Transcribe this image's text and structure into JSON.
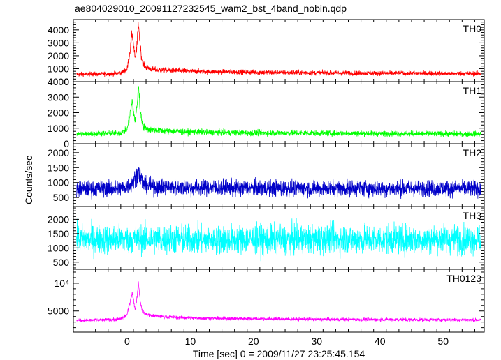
{
  "chart_data": {
    "type": "line",
    "title": "ae804029010_20091127232545_wam2_bst_4band_nobin.qdp",
    "xlabel": "Time [sec] 0 = 2009/11/27 23:25:45.154",
    "ylabel": "Counts/sec",
    "xlim": [
      -8.5,
      56.5
    ],
    "x_ticks": [
      0,
      10,
      20,
      30,
      40,
      50
    ],
    "x_tick_labels": [
      "0",
      "10",
      "20",
      "30",
      "40",
      "50"
    ],
    "grid": false,
    "legend": "none",
    "series": [
      {
        "name": "TH0",
        "color": "#ff0000",
        "ylim": [
          0,
          4800
        ],
        "y_ticks": [
          0,
          1000,
          2000,
          3000,
          4000
        ],
        "y_tick_labels": [
          "0",
          "1000",
          "2000",
          "3000",
          "4000"
        ],
        "x": [
          -8,
          -6,
          -4,
          -2,
          -1,
          0,
          0.5,
          0.8,
          1.0,
          1.3,
          1.6,
          1.8,
          2.0,
          2.3,
          2.6,
          3,
          4,
          5,
          6,
          8,
          10,
          15,
          20,
          25,
          30,
          35,
          40,
          45,
          50,
          55
        ],
        "values": [
          560,
          580,
          590,
          620,
          680,
          950,
          2500,
          3800,
          2900,
          1700,
          3000,
          4600,
          3200,
          1800,
          1300,
          1100,
          950,
          900,
          880,
          850,
          800,
          750,
          720,
          700,
          680,
          660,
          650,
          640,
          630,
          620
        ]
      },
      {
        "name": "TH1",
        "color": "#00ff00",
        "ylim": [
          0,
          4000
        ],
        "y_ticks": [
          0,
          1000,
          2000,
          3000,
          4000
        ],
        "y_tick_labels": [
          "0",
          "1000",
          "2000",
          "3000",
          "4000"
        ],
        "x": [
          -8,
          -6,
          -4,
          -2,
          -1,
          0,
          0.5,
          0.8,
          1.0,
          1.3,
          1.6,
          1.8,
          2.0,
          2.3,
          2.6,
          3,
          4,
          5,
          6,
          8,
          10,
          15,
          20,
          25,
          30,
          35,
          40,
          45,
          50,
          55
        ],
        "values": [
          620,
          640,
          650,
          660,
          700,
          900,
          2000,
          2700,
          2100,
          1400,
          2600,
          3800,
          2500,
          1500,
          1100,
          950,
          880,
          850,
          820,
          800,
          760,
          720,
          700,
          690,
          680,
          670,
          660,
          650,
          640,
          630
        ]
      },
      {
        "name": "TH2",
        "color": "#0000c8",
        "ylim": [
          200,
          2300
        ],
        "y_ticks": [
          500,
          1000,
          1500,
          2000
        ],
        "y_tick_labels": [
          "500",
          "1000",
          "1500",
          "2000"
        ],
        "x": [
          -8,
          -6,
          -4,
          -2,
          -1,
          0,
          0.5,
          1.0,
          1.5,
          1.8,
          2.1,
          2.5,
          3,
          5,
          10,
          15,
          20,
          25,
          30,
          35,
          40,
          45,
          50,
          55
        ],
        "values": [
          780,
          790,
          800,
          800,
          820,
          880,
          950,
          1050,
          1250,
          1400,
          1200,
          1000,
          900,
          850,
          830,
          820,
          820,
          815,
          810,
          810,
          805,
          800,
          800,
          800
        ]
      },
      {
        "name": "TH3",
        "color": "#00ffff",
        "ylim": [
          250,
          2450
        ],
        "y_ticks": [
          500,
          1000,
          1500,
          2000
        ],
        "y_tick_labels": [
          "500",
          "1000",
          "1500",
          "2000"
        ],
        "x": [
          -8,
          -4,
          0,
          2,
          5,
          10,
          20,
          30,
          40,
          50,
          55
        ],
        "values": [
          1300,
          1300,
          1300,
          1320,
          1300,
          1300,
          1300,
          1300,
          1300,
          1300,
          1300
        ]
      },
      {
        "name": "TH0123",
        "color": "#ff00ff",
        "ylim": [
          1200,
          12500
        ],
        "y_ticks": [
          5000,
          10000
        ],
        "y_tick_labels": [
          "5000",
          "10⁴"
        ],
        "x": [
          -8,
          -6,
          -4,
          -2,
          -1,
          0,
          0.5,
          0.8,
          1.0,
          1.3,
          1.6,
          1.8,
          2.0,
          2.3,
          2.6,
          3,
          4,
          5,
          6,
          8,
          10,
          15,
          20,
          25,
          30,
          35,
          40,
          45,
          50,
          55
        ],
        "values": [
          3300,
          3350,
          3400,
          3450,
          3600,
          4300,
          6800,
          8300,
          7000,
          5200,
          7800,
          10300,
          7600,
          5400,
          4700,
          4400,
          4150,
          4050,
          3950,
          3850,
          3750,
          3650,
          3600,
          3550,
          3500,
          3480,
          3460,
          3440,
          3420,
          3400
        ]
      }
    ]
  }
}
